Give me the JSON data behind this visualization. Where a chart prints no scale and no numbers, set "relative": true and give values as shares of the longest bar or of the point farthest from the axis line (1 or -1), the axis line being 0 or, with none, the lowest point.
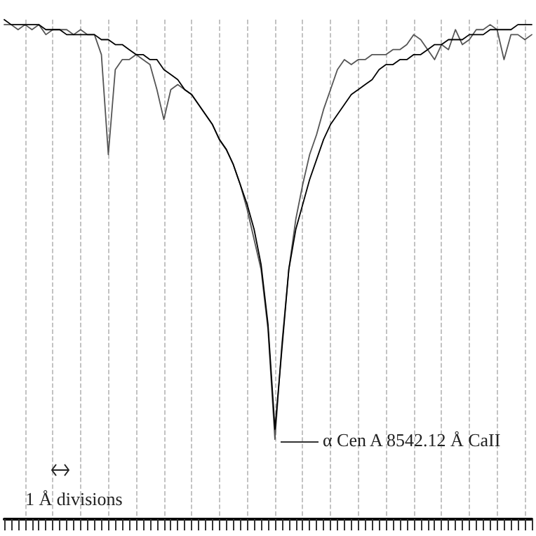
{
  "chart_data": {
    "type": "line",
    "relative": true,
    "grid": "x",
    "line_style": "solid",
    "categories": [
      null,
      null,
      null,
      null,
      null,
      null,
      null,
      null,
      null,
      null,
      null,
      null,
      null,
      null,
      null,
      null,
      null,
      null,
      null,
      null,
      null,
      null,
      null,
      null,
      null,
      null,
      null,
      null,
      null,
      null,
      null,
      null,
      null,
      null,
      null,
      null,
      null,
      null,
      null,
      null,
      null,
      null,
      null,
      null,
      null,
      null,
      null,
      null,
      null,
      null,
      null,
      null,
      null,
      null,
      null,
      null,
      null,
      null,
      null,
      null,
      null,
      null,
      null,
      null,
      null,
      null,
      null,
      null,
      null,
      null,
      null,
      null,
      null,
      null,
      null,
      null,
      null
    ],
    "series": [
      {
        "color": "#555555",
        "values": [
          0.99,
          0.99,
          0.98,
          0.99,
          0.98,
          0.99,
          0.97,
          0.98,
          0.98,
          0.98,
          0.97,
          0.98,
          0.97,
          0.97,
          0.93,
          0.73,
          0.9,
          0.92,
          0.92,
          0.93,
          0.92,
          0.91,
          0.86,
          0.8,
          0.86,
          0.87,
          0.86,
          0.85,
          0.83,
          0.81,
          0.79,
          0.76,
          0.74,
          0.71,
          0.67,
          0.62,
          0.56,
          0.5,
          0.38,
          0.16,
          0.35,
          0.5,
          0.6,
          0.67,
          0.73,
          0.77,
          0.82,
          0.86,
          0.9,
          0.92,
          0.91,
          0.92,
          0.92,
          0.93,
          0.93,
          0.93,
          0.94,
          0.94,
          0.95,
          0.97,
          0.96,
          0.94,
          0.92,
          0.95,
          0.94,
          0.98,
          0.95,
          0.96,
          0.98,
          0.98,
          0.99,
          0.98,
          0.92,
          0.97,
          0.97,
          0.96,
          0.97
        ]
      },
      {
        "color": "#000000",
        "values": [
          1.0,
          0.99,
          0.99,
          0.99,
          0.99,
          0.99,
          0.98,
          0.98,
          0.98,
          0.97,
          0.97,
          0.97,
          0.97,
          0.97,
          0.96,
          0.96,
          0.95,
          0.95,
          0.94,
          0.93,
          0.93,
          0.92,
          0.92,
          0.9,
          0.89,
          0.88,
          0.86,
          0.85,
          0.83,
          0.81,
          0.79,
          0.76,
          0.74,
          0.71,
          0.67,
          0.63,
          0.58,
          0.51,
          0.39,
          0.18,
          0.34,
          0.5,
          0.58,
          0.63,
          0.68,
          0.72,
          0.76,
          0.79,
          0.81,
          0.83,
          0.85,
          0.86,
          0.87,
          0.88,
          0.9,
          0.91,
          0.91,
          0.92,
          0.92,
          0.93,
          0.93,
          0.94,
          0.95,
          0.95,
          0.96,
          0.96,
          0.96,
          0.97,
          0.97,
          0.97,
          0.98,
          0.98,
          0.98,
          0.98,
          0.99,
          0.99,
          0.99
        ]
      }
    ],
    "annotations": [
      "α Cen A 8542.12 Å CaII",
      "1 Å divisions"
    ]
  }
}
